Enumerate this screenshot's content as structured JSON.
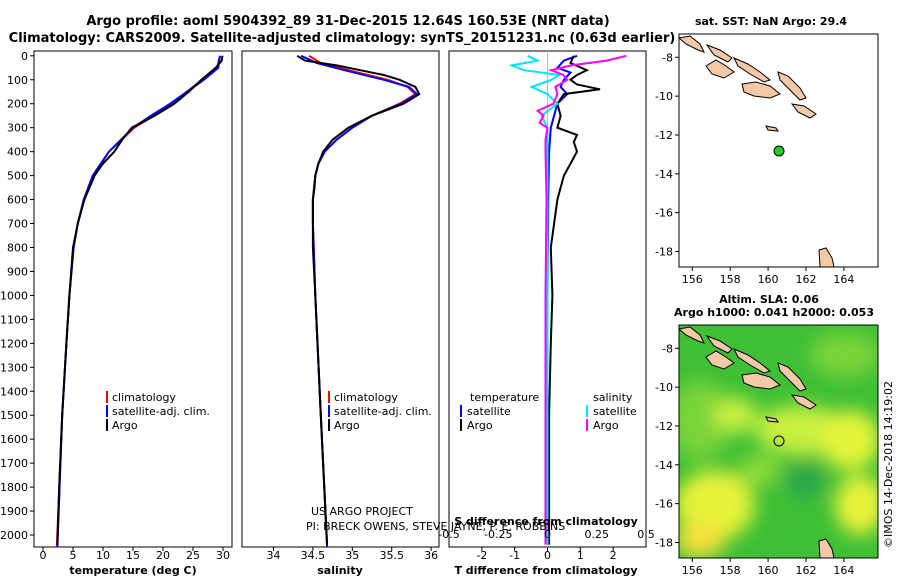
{
  "title": {
    "line1": "Argo profile: aoml 5904392_89 31-Dec-2015 12.64S 160.53E (NRT data)",
    "line2": "Climatology: CARS2009. Satellite-adjusted climatology: synTS_20151231.nc (0.63d earlier)"
  },
  "depth_axis": {
    "ticks": [
      "0",
      "100",
      "200",
      "300",
      "400",
      "500",
      "600",
      "700",
      "800",
      "900",
      "1000",
      "1100",
      "1200",
      "1300",
      "1400",
      "1500",
      "1600",
      "1700",
      "1800",
      "1900",
      "2000"
    ],
    "range": [
      -20,
      2050
    ]
  },
  "colors": {
    "climatology": "#ff0000",
    "satellite": "#0000ff",
    "argo": "#000000",
    "sat_temp": "#00e5ff",
    "sat_sal": "#ff00ff"
  },
  "chart_data": [
    {
      "type": "line",
      "name": "temperature",
      "xlabel": "temperature (deg C)",
      "xlim": [
        -1.5,
        31.5
      ],
      "xticks": [
        0,
        5,
        10,
        15,
        20,
        25,
        30
      ],
      "xtick_labels": [
        "0",
        "5",
        "10",
        "15",
        "20",
        "25",
        "30"
      ],
      "series": [
        {
          "name": "climatology",
          "depth": [
            0,
            50,
            100,
            150,
            200,
            250,
            300,
            400,
            500,
            600,
            700,
            800,
            1000,
            1200,
            1500,
            2050
          ],
          "values": [
            29.5,
            29.0,
            26.5,
            24.0,
            21.5,
            18.5,
            15.2,
            11.0,
            8.3,
            6.8,
            5.8,
            5.1,
            4.4,
            3.9,
            3.2,
            2.3
          ]
        },
        {
          "name": "satellite-adj. clim.",
          "depth": [
            0,
            50,
            100,
            150,
            200,
            250,
            300,
            400,
            500,
            600,
            700,
            800,
            1000,
            1200,
            1500,
            2050
          ],
          "values": [
            29.5,
            29.2,
            26.8,
            24.0,
            21.2,
            18.0,
            15.0,
            11.0,
            8.3,
            6.8,
            5.8,
            5.1,
            4.4,
            3.9,
            3.2,
            2.4
          ]
        },
        {
          "name": "Argo",
          "depth": [
            0,
            20,
            50,
            100,
            150,
            200,
            250,
            300,
            350,
            400,
            450,
            500,
            600,
            700,
            800,
            1000,
            1200,
            1500,
            1800,
            2040
          ],
          "values": [
            29.9,
            29.8,
            28.8,
            26.4,
            24.3,
            21.9,
            18.6,
            14.8,
            13.2,
            11.9,
            10.0,
            8.6,
            6.9,
            5.8,
            5.0,
            4.4,
            3.9,
            3.2,
            2.7,
            2.4
          ]
        }
      ],
      "legend": [
        "climatology",
        "satellite-adj. clim.",
        "Argo"
      ]
    },
    {
      "type": "line",
      "name": "salinity",
      "xlabel": "salinity",
      "xlim": [
        33.6,
        36.1
      ],
      "xticks": [
        34,
        34.5,
        35,
        35.5,
        36
      ],
      "xtick_labels": [
        "34",
        "34.5",
        "35",
        "35.5",
        "36"
      ],
      "series": [
        {
          "name": "climatology",
          "depth": [
            0,
            30,
            60,
            100,
            130,
            160,
            200,
            250,
            300,
            350,
            400,
            450,
            500,
            600,
            700,
            800,
            1000,
            1500,
            2050
          ],
          "values": [
            34.45,
            34.6,
            34.95,
            35.45,
            35.7,
            35.8,
            35.6,
            35.25,
            35.0,
            34.8,
            34.65,
            34.57,
            34.53,
            34.5,
            34.5,
            34.51,
            34.53,
            34.6,
            34.68
          ]
        },
        {
          "name": "satellite-adj. clim.",
          "depth": [
            0,
            30,
            60,
            100,
            130,
            160,
            200,
            250,
            300,
            350,
            400,
            450,
            500,
            600,
            700,
            800,
            1000,
            1500,
            2050
          ],
          "values": [
            34.35,
            34.55,
            34.9,
            35.4,
            35.72,
            35.82,
            35.62,
            35.25,
            35.0,
            34.8,
            34.65,
            34.57,
            34.53,
            34.5,
            34.5,
            34.51,
            34.53,
            34.6,
            34.68
          ]
        },
        {
          "name": "Argo",
          "depth": [
            0,
            20,
            40,
            60,
            80,
            100,
            130,
            160,
            200,
            250,
            300,
            350,
            400,
            450,
            500,
            550,
            600,
            700,
            800,
            1000,
            1500,
            2040
          ],
          "values": [
            34.3,
            34.4,
            34.8,
            35.1,
            35.4,
            35.6,
            35.8,
            35.85,
            35.65,
            35.25,
            34.95,
            34.75,
            34.63,
            34.57,
            34.53,
            34.52,
            34.5,
            34.5,
            34.5,
            34.53,
            34.6,
            34.68
          ]
        }
      ],
      "legend": [
        "climatology",
        "satellite-adj. clim.",
        "Argo"
      ],
      "annotation": [
        "US ARGO PROJECT",
        "PI: BRECK OWENS, STEVE JAYNE, P. E. ROBBINS"
      ]
    },
    {
      "type": "line",
      "name": "difference",
      "xlabel": "T difference from climatology",
      "xlabel_top": "S difference from climatology",
      "xlim": [
        -3,
        3
      ],
      "xticks": [
        -2,
        -1,
        0,
        1,
        2
      ],
      "xtick_labels": [
        "-2",
        "-1",
        "0",
        "1",
        "2"
      ],
      "top_ticks": [
        -0.5,
        -0.25,
        0,
        0.25,
        0.5
      ],
      "top_tick_labels": [
        "-0.5",
        "-0.25",
        "0",
        "0.25",
        "0.5"
      ],
      "series": [
        {
          "name": "T satellite",
          "depth": [
            0,
            20,
            50,
            70,
            100,
            130,
            160,
            200,
            250,
            300,
            400,
            600,
            1000,
            1500,
            2040
          ],
          "values": [
            0.9,
            0.5,
            0.3,
            0.7,
            0.5,
            0.4,
            0.6,
            0.3,
            0.2,
            0.1,
            0.05,
            0.02,
            0.0,
            0.0,
            0.0
          ]
        },
        {
          "name": "T Argo",
          "depth": [
            0,
            30,
            60,
            80,
            100,
            120,
            140,
            160,
            200,
            250,
            300,
            330,
            360,
            400,
            450,
            500,
            550,
            600,
            700,
            800,
            1000,
            1200,
            1500,
            1800,
            2040
          ],
          "values": [
            0.8,
            0.7,
            1.2,
            0.9,
            0.7,
            0.9,
            1.6,
            0.5,
            0.3,
            0.4,
            0.3,
            0.9,
            0.8,
            0.9,
            0.7,
            0.5,
            0.4,
            0.3,
            0.2,
            0.1,
            0.15,
            0.1,
            0.05,
            0.05,
            0.05
          ]
        },
        {
          "name": "S satellite",
          "depth": [
            0,
            20,
            40,
            60,
            80,
            100,
            130,
            160,
            200,
            250,
            300,
            400,
            600,
            1000,
            1500,
            2040
          ],
          "values": [
            -0.1,
            -0.05,
            -0.18,
            -0.12,
            0.06,
            0.02,
            -0.08,
            0.0,
            0.05,
            -0.03,
            0.0,
            0.0,
            0.0,
            0.0,
            0.0,
            0.0
          ]
        },
        {
          "name": "S Argo",
          "depth": [
            0,
            20,
            40,
            60,
            80,
            100,
            130,
            160,
            200,
            230,
            250,
            280,
            300,
            350,
            400,
            600,
            1000,
            1500,
            2040
          ],
          "values": [
            0.4,
            0.3,
            0.12,
            0.02,
            0.08,
            0.1,
            0.04,
            0.05,
            0.03,
            -0.05,
            -0.02,
            -0.04,
            0.0,
            -0.01,
            -0.01,
            -0.005,
            -0.01,
            -0.01,
            -0.01
          ]
        }
      ],
      "legend_temp_title": "temperature",
      "legend_sal_title": "salinity",
      "legend_labels": [
        "satellite",
        "Argo"
      ]
    },
    {
      "type": "map",
      "name": "sst-map",
      "title": "sat. SST: NaN Argo: 29.4",
      "xticks": [
        156,
        158,
        160,
        162,
        164
      ],
      "yticks": [
        -8,
        -10,
        -12,
        -14,
        -16,
        -18
      ],
      "xtick_labels": [
        "156",
        "158",
        "160",
        "162",
        "164"
      ],
      "ytick_labels": [
        "-8",
        "-10",
        "-12",
        "-14",
        "-16",
        "-18"
      ],
      "xlim": [
        155.3,
        165.8
      ],
      "ylim": [
        -18.8,
        -6.8
      ],
      "argo_position": [
        160.53,
        -12.64
      ]
    },
    {
      "type": "map",
      "name": "sla-map",
      "title": "Altim. SLA: 0.06",
      "subtitle": "Argo h1000: 0.041 h2000: 0.053",
      "xticks": [
        156,
        158,
        160,
        162,
        164
      ],
      "yticks": [
        -8,
        -10,
        -12,
        -14,
        -16,
        -18
      ],
      "xtick_labels": [
        "156",
        "158",
        "160",
        "162",
        "164"
      ],
      "ytick_labels": [
        "-8",
        "-10",
        "-12",
        "-14",
        "-16",
        "-18"
      ],
      "xlim": [
        155.3,
        165.8
      ],
      "ylim": [
        -18.8,
        -6.8
      ],
      "argo_position": [
        160.53,
        -12.64
      ]
    }
  ],
  "watermark": "©IMOS 14-Dec-2018 14:19:02"
}
